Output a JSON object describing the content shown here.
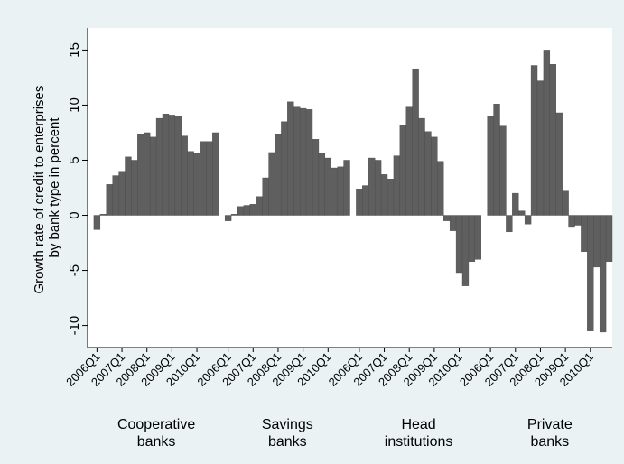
{
  "chart_data": {
    "type": "bar",
    "title": "",
    "xlabel": "",
    "ylabel": "Growth rate of credit to enterprises by bank type in percent",
    "ylabel_lines": [
      "Growth rate of credit to enterprises",
      "by bank type in percent"
    ],
    "ylim": [
      -12,
      17
    ],
    "yticks": [
      15,
      10,
      5,
      0,
      -5,
      -10
    ],
    "grid": false,
    "legend": "none",
    "bar_color": "#5f5f5f",
    "background_color": "#eaf2f3",
    "plot_background_color": "#ffffff",
    "tick_label_positions": [
      0,
      4,
      8,
      12,
      16
    ],
    "groups": [
      {
        "name": "Cooperative banks",
        "label_lines": [
          "Cooperative",
          "banks"
        ],
        "tick_labels": [
          "2006Q1",
          "2007Q1",
          "2008Q1",
          "2009Q1",
          "2010Q1"
        ],
        "categories": [
          "2006Q1",
          "2006Q2",
          "2006Q3",
          "2006Q4",
          "2007Q1",
          "2007Q2",
          "2007Q3",
          "2007Q4",
          "2008Q1",
          "2008Q2",
          "2008Q3",
          "2008Q4",
          "2009Q1",
          "2009Q2",
          "2009Q3",
          "2009Q4",
          "2010Q1",
          "2010Q2",
          "2010Q3",
          "2010Q4"
        ],
        "values": [
          -1.3,
          0.1,
          2.8,
          3.6,
          4.0,
          5.3,
          5.0,
          7.4,
          7.5,
          7.1,
          8.8,
          9.2,
          9.1,
          9.0,
          7.2,
          5.8,
          5.6,
          6.7,
          6.7,
          7.5
        ]
      },
      {
        "name": "Savings banks",
        "label_lines": [
          "Savings",
          "banks"
        ],
        "tick_labels": [
          "2006Q1",
          "2007Q1",
          "2008Q1",
          "2009Q1",
          "2010Q1"
        ],
        "categories": [
          "2006Q1",
          "2006Q2",
          "2006Q3",
          "2006Q4",
          "2007Q1",
          "2007Q2",
          "2007Q3",
          "2007Q4",
          "2008Q1",
          "2008Q2",
          "2008Q3",
          "2008Q4",
          "2009Q1",
          "2009Q2",
          "2009Q3",
          "2009Q4",
          "2010Q1",
          "2010Q2",
          "2010Q3",
          "2010Q4"
        ],
        "values": [
          -0.5,
          0.1,
          0.8,
          0.9,
          1.0,
          1.7,
          3.4,
          5.7,
          7.4,
          8.5,
          10.3,
          9.9,
          9.7,
          9.6,
          6.9,
          5.6,
          5.2,
          4.3,
          4.4,
          5.0
        ]
      },
      {
        "name": "Head institutions",
        "label_lines": [
          "Head",
          "institutions"
        ],
        "tick_labels": [
          "2006Q1",
          "2007Q1",
          "2008Q1",
          "2009Q1",
          "2010Q1"
        ],
        "categories": [
          "2006Q1",
          "2006Q2",
          "2006Q3",
          "2006Q4",
          "2007Q1",
          "2007Q2",
          "2007Q3",
          "2007Q4",
          "2008Q1",
          "2008Q2",
          "2008Q3",
          "2008Q4",
          "2009Q1",
          "2009Q2",
          "2009Q3",
          "2009Q4",
          "2010Q1",
          "2010Q2",
          "2010Q3",
          "2010Q4"
        ],
        "values": [
          2.4,
          2.7,
          5.2,
          5.0,
          3.7,
          3.3,
          5.4,
          8.2,
          9.9,
          13.3,
          8.8,
          7.6,
          7.1,
          4.9,
          -0.5,
          -1.4,
          -5.2,
          -6.4,
          -4.2,
          -4.0
        ]
      },
      {
        "name": "Private banks",
        "label_lines": [
          "Private",
          "banks"
        ],
        "tick_labels": [
          "2006Q1",
          "2007Q1",
          "2008Q1",
          "2009Q1",
          "2010Q1"
        ],
        "categories": [
          "2006Q1",
          "2006Q2",
          "2006Q3",
          "2006Q4",
          "2007Q1",
          "2007Q2",
          "2007Q3",
          "2007Q4",
          "2008Q1",
          "2008Q2",
          "2008Q3",
          "2008Q4",
          "2009Q1",
          "2009Q2",
          "2009Q3",
          "2009Q4",
          "2010Q1",
          "2010Q2",
          "2010Q3",
          "2010Q4"
        ],
        "values": [
          9.0,
          10.1,
          8.1,
          -1.5,
          2.0,
          0.4,
          -0.8,
          13.6,
          12.2,
          15.0,
          13.7,
          9.3,
          2.2,
          -1.1,
          -0.9,
          -3.3,
          -10.5,
          -4.7,
          -10.6,
          -4.2
        ]
      }
    ]
  }
}
